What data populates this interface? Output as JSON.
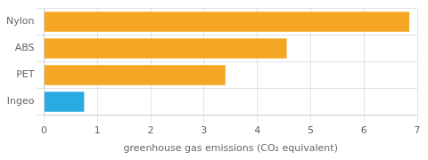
{
  "chart_data": {
    "type": "bar",
    "orientation": "horizontal",
    "categories": [
      "Ingeo",
      "PET",
      "ABS",
      "Nylon"
    ],
    "values": [
      0.75,
      3.4,
      4.55,
      6.85
    ],
    "colors": [
      "#29abe2",
      "#f5a623",
      "#f5a623",
      "#f5a623"
    ],
    "xlabel": "greenhouse gas emissions (CO₂ equivalent)",
    "xlim": [
      0,
      7
    ],
    "xticks": [
      0,
      1,
      2,
      3,
      4,
      5,
      6,
      7
    ],
    "grid": true
  }
}
